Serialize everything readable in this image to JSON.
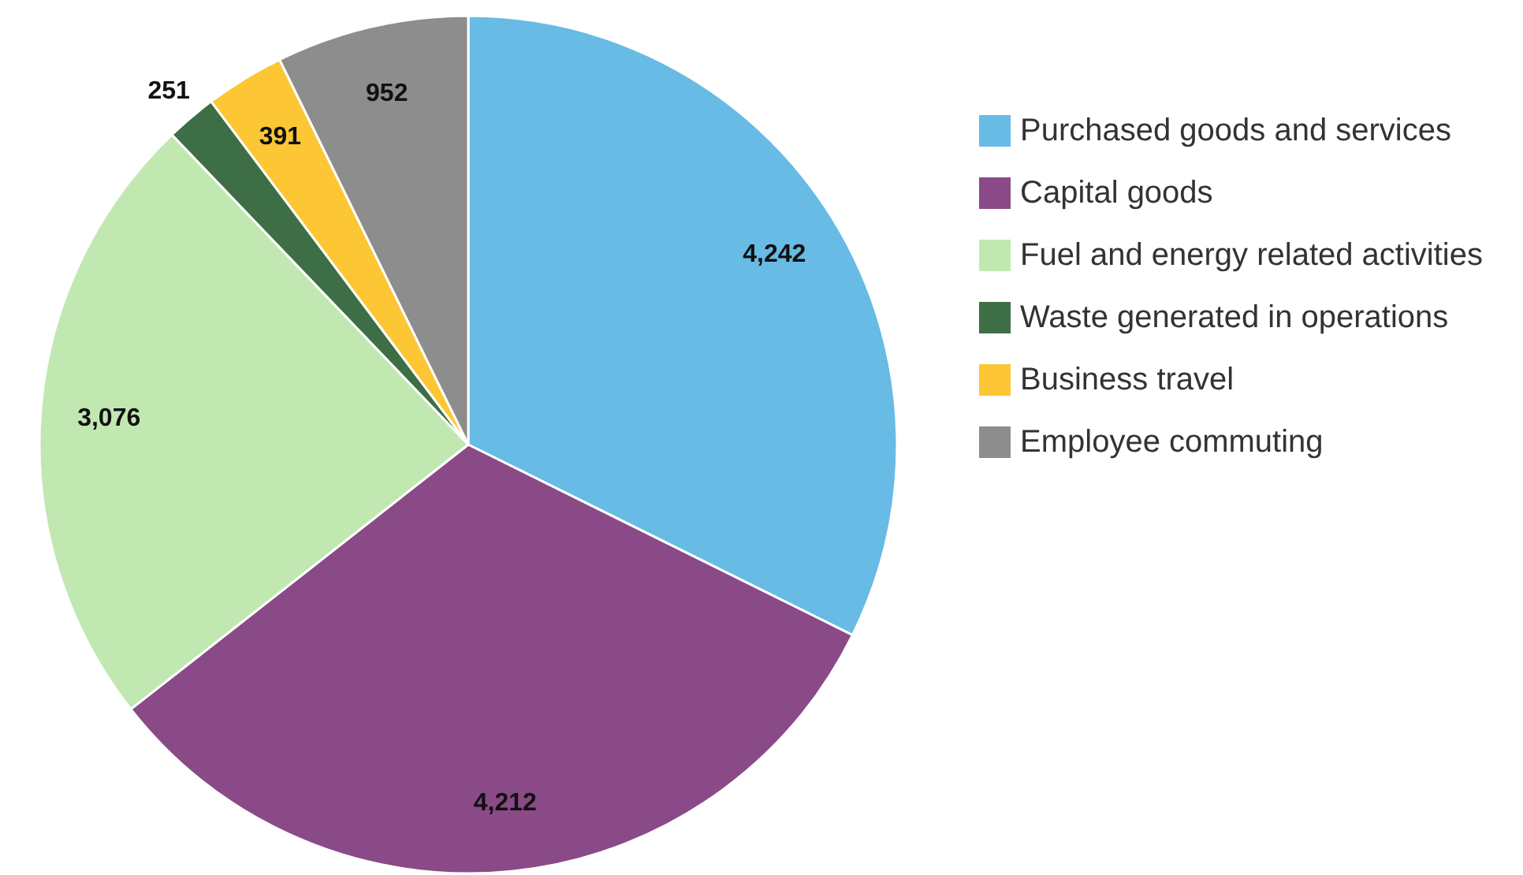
{
  "chart_data": {
    "type": "pie",
    "categories": [
      "Purchased goods and services",
      "Capital goods",
      "Fuel and energy related activities",
      "Waste generated in operations",
      "Business travel",
      "Employee commuting"
    ],
    "values": [
      4242,
      4212,
      3076,
      251,
      391,
      952
    ],
    "colors": [
      "#67bbe5",
      "#8a4a87",
      "#c2e8b2",
      "#3e6e45",
      "#fdc634",
      "#8d8d8d"
    ],
    "value_labels": [
      "4,242",
      "4,212",
      "3,076",
      "251",
      "391",
      "952"
    ],
    "legend": "right"
  }
}
